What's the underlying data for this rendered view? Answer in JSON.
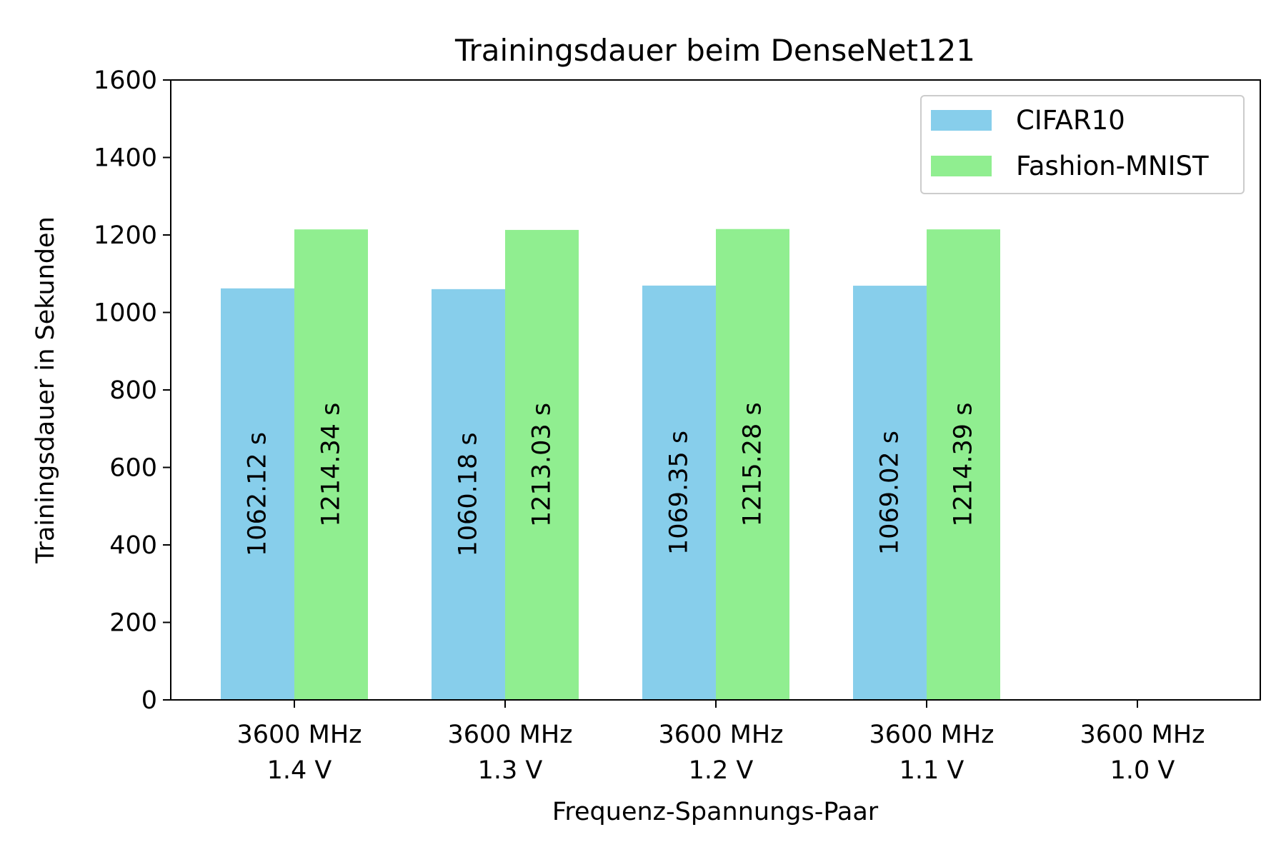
{
  "chart_data": {
    "type": "bar",
    "title": "Trainingsdauer beim DenseNet121",
    "xlabel": "Frequenz-Spannungs-Paar",
    "ylabel": "Trainingsdauer in Sekunden",
    "ylim": [
      0,
      1600
    ],
    "yticks": [
      0,
      200,
      400,
      600,
      800,
      1000,
      1200,
      1400,
      1600
    ],
    "categories": [
      [
        "3600 MHz",
        "1.4 V"
      ],
      [
        "3600 MHz",
        "1.3 V"
      ],
      [
        "3600 MHz",
        "1.2 V"
      ],
      [
        "3600 MHz",
        "1.1 V"
      ],
      [
        "3600 MHz",
        "1.0 V"
      ]
    ],
    "series": [
      {
        "name": "CIFAR10",
        "color": "#87ceeb",
        "values": [
          1062.12,
          1060.18,
          1069.35,
          1069.02,
          null
        ],
        "labels": [
          "1062.12 s",
          "1060.18 s",
          "1069.35 s",
          "1069.02 s",
          null
        ]
      },
      {
        "name": "Fashion-MNIST",
        "color": "#90ee90",
        "values": [
          1214.34,
          1213.03,
          1215.28,
          1214.39,
          null
        ],
        "labels": [
          "1214.34 s",
          "1213.03 s",
          "1215.28 s",
          "1214.39 s",
          null
        ]
      }
    ],
    "legend_position": "top-right",
    "grid": false
  }
}
